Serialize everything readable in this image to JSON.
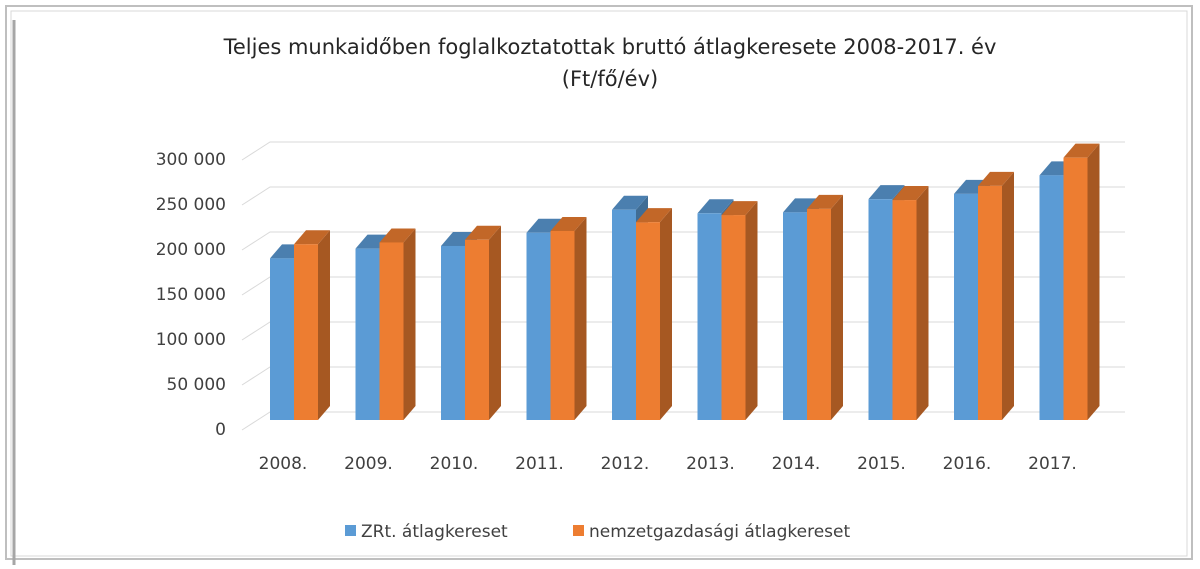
{
  "chart_data": {
    "type": "bar3d",
    "title": "Teljes munkaidőben foglalkoztatottak bruttó átlagkeresete 2008-2017. év",
    "subtitle": "(Ft/fő/év)",
    "categories": [
      "2008.",
      "2009.",
      "2010.",
      "2011.",
      "2012.",
      "2013.",
      "2014.",
      "2015.",
      "2016.",
      "2017."
    ],
    "series": [
      {
        "name": "ZRt. átlagkereset",
        "color": "#5b9bd5",
        "values": [
          183000,
          194000,
          197000,
          212000,
          238000,
          234000,
          235000,
          250000,
          256000,
          277000
        ]
      },
      {
        "name": "nemzetgazdasági átlagkereset",
        "color": "#ed7d31",
        "values": [
          199000,
          201000,
          204000,
          214000,
          224000,
          232000,
          239000,
          249000,
          265000,
          297000
        ]
      }
    ],
    "ylim": [
      0,
      300000
    ],
    "yticks": [
      0,
      {
        "value": 50000,
        "label": "50 000"
      },
      {
        "value": 100000,
        "label": "100 000"
      },
      {
        "value": 150000,
        "label": "150 000"
      },
      {
        "value": 200000,
        "label": "200 000"
      },
      {
        "value": 250000,
        "label": "250 000"
      },
      {
        "value": 300000,
        "label": "300 000"
      }
    ],
    "grid": true,
    "legend": "bottom"
  }
}
